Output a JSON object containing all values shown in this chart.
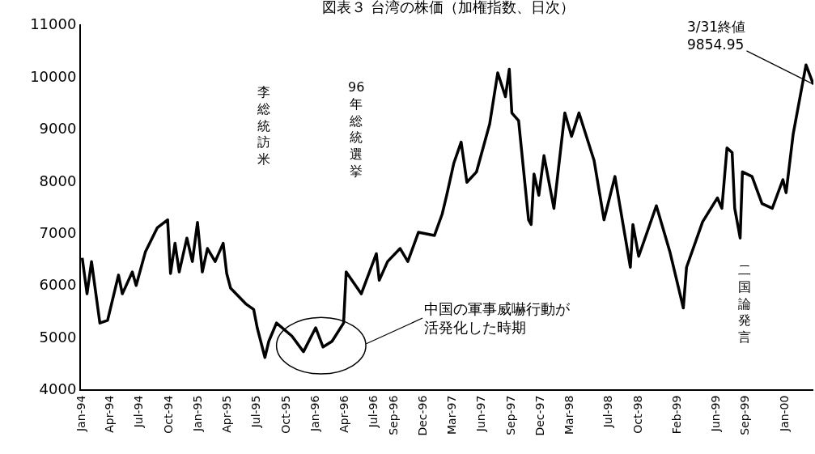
{
  "chart_data": {
    "type": "line",
    "title": "図表３ 台湾の株価（加権指数、日次）",
    "x": [
      "1994-01-05",
      "1994-01-20",
      "1994-02-03",
      "1994-02-15",
      "1994-03-01",
      "1994-03-25",
      "1994-04-28",
      "1994-05-10",
      "1994-06-10",
      "1994-06-22",
      "1994-07-21",
      "1994-08-27",
      "1994-09-28",
      "1994-10-07",
      "1994-10-21",
      "1994-11-03",
      "1994-11-27",
      "1994-12-14",
      "1994-12-30",
      "1995-01-14",
      "1995-01-30",
      "1995-02-23",
      "1995-03-20",
      "1995-03-31",
      "1995-04-12",
      "1995-05-29",
      "1995-06-23",
      "1995-07-04",
      "1995-07-28",
      "1995-08-09",
      "1995-09-02",
      "1995-10-20",
      "1995-11-25",
      "1996-01-02",
      "1996-01-25",
      "1996-02-22",
      "1996-03-29",
      "1996-04-06",
      "1996-05-23",
      "1996-07-09",
      "1996-07-18",
      "1996-08-13",
      "1996-09-21",
      "1996-10-15",
      "1996-11-17",
      "1997-01-06",
      "1997-01-30",
      "1997-02-13",
      "1997-03-07",
      "1997-03-30",
      "1997-04-17",
      "1997-05-17",
      "1997-06-27",
      "1997-07-22",
      "1997-08-15",
      "1997-08-27",
      "1997-09-04",
      "1997-09-25",
      "1997-10-26",
      "1997-11-03",
      "1997-11-12",
      "1997-11-27",
      "1997-12-13",
      "1998-01-13",
      "1998-02-16",
      "1998-03-02",
      "1998-03-09",
      "1998-04-01",
      "1998-05-18",
      "1998-06-18",
      "1998-07-22",
      "1998-09-08",
      "1998-09-16",
      "1998-10-04",
      "1998-11-28",
      "1999-01-09",
      "1999-02-20",
      "1999-03-02",
      "1999-04-21",
      "1999-06-06",
      "1999-06-20",
      "1999-07-06",
      "1999-07-22",
      "1999-07-30",
      "1999-08-16",
      "1999-08-23",
      "1999-09-22",
      "1999-10-23",
      "1999-11-24",
      "1999-12-27",
      "2000-01-06",
      "2000-01-28",
      "2000-03-08",
      "2000-03-31"
    ],
    "series": [
      {
        "color": "#000000",
        "values": [
          6520,
          5830,
          6450,
          5900,
          5270,
          5320,
          6190,
          5830,
          6250,
          5990,
          6640,
          7100,
          7250,
          6220,
          6800,
          6250,
          6900,
          6450,
          7200,
          6250,
          6700,
          6450,
          6800,
          6220,
          5940,
          5640,
          5530,
          5180,
          4610,
          4920,
          5270,
          5020,
          4720,
          5180,
          4810,
          4920,
          5270,
          6250,
          5830,
          6600,
          6090,
          6450,
          6700,
          6450,
          7010,
          6950,
          7360,
          7720,
          8330,
          8740,
          7970,
          8170,
          9090,
          10070,
          9610,
          10140,
          9300,
          9150,
          7250,
          7160,
          8130,
          7720,
          8480,
          7470,
          9300,
          9000,
          8850,
          9300,
          8390,
          7250,
          8080,
          6340,
          7160,
          6550,
          7520,
          6640,
          5560,
          6340,
          7210,
          7670,
          7470,
          8630,
          8540,
          7470,
          6900,
          8170,
          8080,
          7560,
          7470,
          8020,
          7770,
          8890,
          10220,
          9850
        ]
      }
    ],
    "xlim": [
      "1994-01-01",
      "2000-03-31"
    ],
    "xticks": [
      {
        "value": "1994-01-01",
        "label": "Jan-94"
      },
      {
        "value": "1994-04-01",
        "label": "Apr-94"
      },
      {
        "value": "1994-07-01",
        "label": "Jul-94"
      },
      {
        "value": "1994-10-01",
        "label": "Oct-94"
      },
      {
        "value": "1995-01-01",
        "label": "Jan-95"
      },
      {
        "value": "1995-04-01",
        "label": "Apr-95"
      },
      {
        "value": "1995-07-01",
        "label": "Jul-95"
      },
      {
        "value": "1995-10-01",
        "label": "Oct-95"
      },
      {
        "value": "1996-01-01",
        "label": "Jan-96"
      },
      {
        "value": "1996-04-01",
        "label": "Apr-96"
      },
      {
        "value": "1996-07-01",
        "label": "Jul-96"
      },
      {
        "value": "1996-09-01",
        "label": "Sep-96"
      },
      {
        "value": "1996-12-01",
        "label": "Dec-96"
      },
      {
        "value": "1997-03-01",
        "label": "Mar-97"
      },
      {
        "value": "1997-06-01",
        "label": "Jun-97"
      },
      {
        "value": "1997-09-01",
        "label": "Sep-97"
      },
      {
        "value": "1997-12-01",
        "label": "Dec-97"
      },
      {
        "value": "1998-03-01",
        "label": "Mar-98"
      },
      {
        "value": "1998-07-01",
        "label": "Jul-98"
      },
      {
        "value": "1998-10-01",
        "label": "Oct-98"
      },
      {
        "value": "1999-02-01",
        "label": "Feb-99"
      },
      {
        "value": "1999-06-01",
        "label": "Jun-99"
      },
      {
        "value": "1999-09-01",
        "label": "Sep-99"
      },
      {
        "value": "2000-01-01",
        "label": "Jan-00"
      }
    ],
    "ylim": [
      4000,
      11000
    ],
    "yticks": [
      4000,
      5000,
      6000,
      7000,
      8000,
      9000,
      10000,
      11000
    ],
    "marker": "none",
    "line_style": "solid",
    "annotations": [
      "李総統訪米",
      "96年総統選挙",
      "二国論発言",
      "中国の軍事威嚇行動が活発化した時期",
      {
        "text": "3/31終値\n9854.95",
        "x": "2000-03-31",
        "y": 9850
      }
    ]
  }
}
